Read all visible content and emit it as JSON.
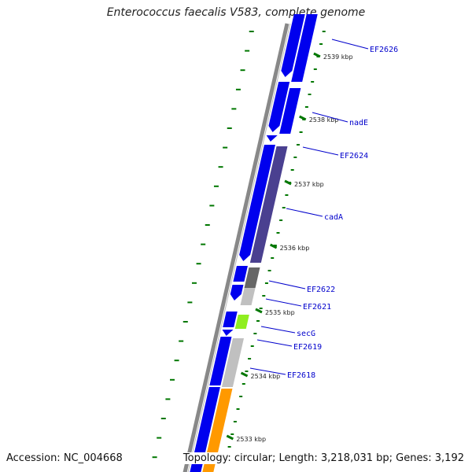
{
  "title": "Enterococcus faecalis V583, complete genome",
  "footer": {
    "accession": "Accession: NC_004668",
    "stats": "Topology: circular; Length: 3,218,031 bp; Genes: 3,192"
  },
  "colors": {
    "cds": "#0000ee",
    "gene_dark": "#4a4090",
    "gene_grey": "#666666",
    "gene_light": "#c0c0c0",
    "gene_green": "#90ee20",
    "gene_orange": "#ff9900",
    "backbone": "#888888",
    "tick": "#007700",
    "label": "#0000cc"
  },
  "gene_labels": [
    "EF2626",
    "nadE",
    "EF2624",
    "cadA",
    "EF2622",
    "EF2621",
    "secG",
    "EF2619",
    "EF2618"
  ],
  "tick_labels": [
    "2539 kbp",
    "2538 kbp",
    "2537 kbp",
    "2536 kbp",
    "2535 kbp",
    "2534 kbp",
    "2533 kbp"
  ]
}
